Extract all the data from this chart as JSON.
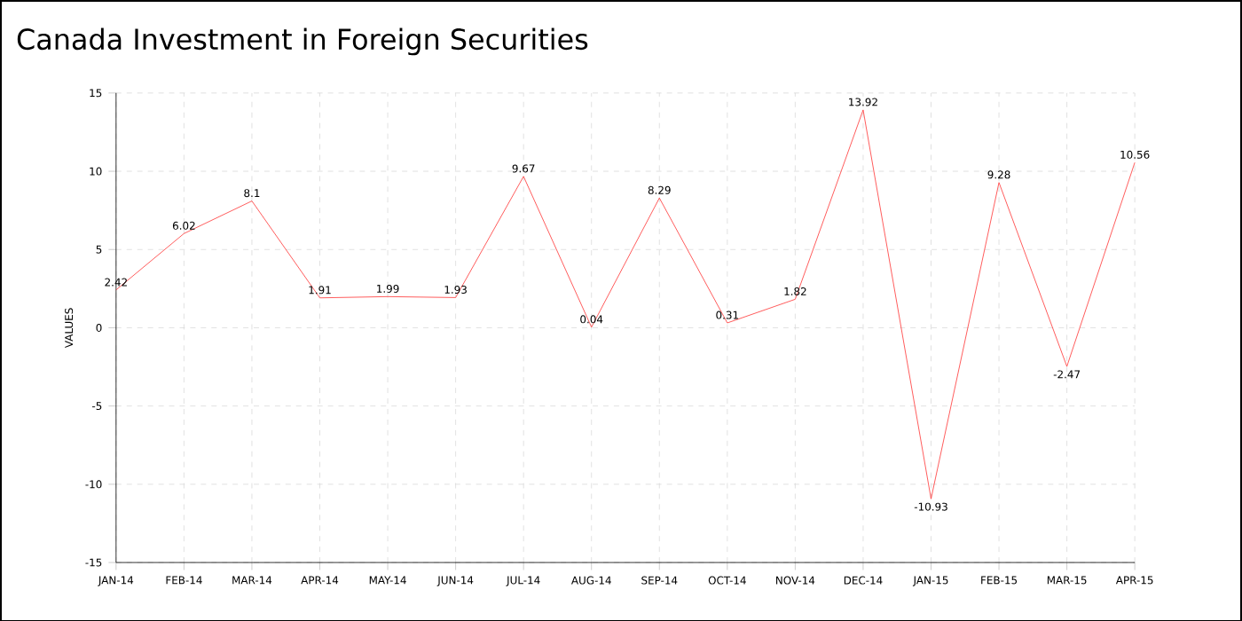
{
  "chart_data": {
    "type": "line",
    "title": "Canada Investment in Foreign Securities",
    "ylabel": "VALUES",
    "categories": [
      "JAN-14",
      "FEB-14",
      "MAR-14",
      "APR-14",
      "MAY-14",
      "JUN-14",
      "JUL-14",
      "AUG-14",
      "SEP-14",
      "OCT-14",
      "NOV-14",
      "DEC-14",
      "JAN-15",
      "FEB-15",
      "MAR-15",
      "APR-15"
    ],
    "series": [
      {
        "color": "#ff3333",
        "values": [
          2.42,
          6.02,
          8.1,
          1.91,
          1.99,
          1.93,
          9.67,
          0.04,
          8.29,
          0.31,
          1.82,
          13.92,
          -10.93,
          9.28,
          -2.47,
          10.56
        ]
      }
    ],
    "ylim": [
      -15,
      15
    ],
    "yticks": [
      -15,
      -10,
      -5,
      0,
      5,
      10,
      15
    ],
    "grid": true,
    "data_labels": true,
    "marker": "none",
    "line_style": "solid"
  }
}
